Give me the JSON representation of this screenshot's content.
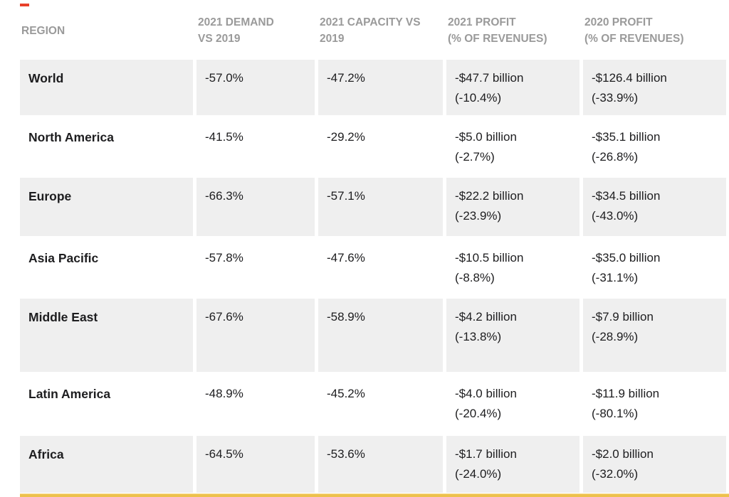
{
  "table": {
    "columns": [
      {
        "label": "REGION",
        "lines": [
          "REGION"
        ]
      },
      {
        "label": "2021 DEMAND VS 2019",
        "lines": [
          "2021 DEMAND",
          "VS 2019"
        ]
      },
      {
        "label": "2021 CAPACITY VS 2019",
        "lines": [
          "2021 CAPACITY VS",
          "2019"
        ]
      },
      {
        "label": "2021 PROFIT (% OF REVENUES)",
        "lines": [
          "2021 PROFIT",
          "(% OF REVENUES)"
        ]
      },
      {
        "label": "2020 PROFIT (% OF REVENUES)",
        "lines": [
          "2020 PROFIT",
          "(% OF REVENUES)"
        ]
      }
    ],
    "rows": [
      {
        "region": "World",
        "demand": "-57.0%",
        "capacity": "-47.2%",
        "profit_2021": [
          "-$47.7 billion",
          "(-10.4%)"
        ],
        "profit_2020": [
          "-$126.4 billion",
          "(-33.9%)"
        ]
      },
      {
        "region": "North America",
        "demand": "-41.5%",
        "capacity": "-29.2%",
        "profit_2021": [
          "-$5.0 billion",
          "(-2.7%)"
        ],
        "profit_2020": [
          "-$35.1 billion",
          "(-26.8%)"
        ]
      },
      {
        "region": "Europe",
        "demand": "-66.3%",
        "capacity": "-57.1%",
        "profit_2021": [
          "-$22.2 billion",
          "(-23.9%)"
        ],
        "profit_2020": [
          "-$34.5 billion",
          "(-43.0%)"
        ]
      },
      {
        "region": "Asia Pacific",
        "demand": "-57.8%",
        "capacity": "-47.6%",
        "profit_2021": [
          "-$10.5 billion",
          "(-8.8%)"
        ],
        "profit_2020": [
          "-$35.0 billion",
          "(-31.1%)"
        ]
      },
      {
        "region": "Middle East",
        "demand": "-67.6%",
        "capacity": "-58.9%",
        "profit_2021": [
          "-$4.2 billion",
          "(-13.8%)"
        ],
        "profit_2020": [
          "-$7.9 billion",
          "(-28.9%)"
        ]
      },
      {
        "region": "Latin America",
        "demand": "-48.9%",
        "capacity": "-45.2%",
        "profit_2021": [
          "-$4.0 billion",
          "(-20.4%)"
        ],
        "profit_2020": [
          "-$11.9 billion",
          "(-80.1%)"
        ]
      },
      {
        "region": "Africa",
        "demand": "-64.5%",
        "capacity": "-53.6%",
        "profit_2021": [
          "-$1.7 billion",
          "(-24.0%)"
        ],
        "profit_2020": [
          "-$2.0 billion",
          "(-32.0%)"
        ]
      }
    ]
  },
  "chart_data": {
    "type": "table",
    "columns": [
      "REGION",
      "2021 DEMAND VS 2019",
      "2021 CAPACITY VS 2019",
      "2021 PROFIT (% OF REVENUES)",
      "2020 PROFIT (% OF REVENUES)"
    ],
    "rows": [
      [
        "World",
        "-57.0%",
        "-47.2%",
        "-$47.7 billion (-10.4%)",
        "-$126.4 billion (-33.9%)"
      ],
      [
        "North America",
        "-41.5%",
        "-29.2%",
        "-$5.0 billion (-2.7%)",
        "-$35.1 billion (-26.8%)"
      ],
      [
        "Europe",
        "-66.3%",
        "-57.1%",
        "-$22.2 billion (-23.9%)",
        "-$34.5 billion (-43.0%)"
      ],
      [
        "Asia Pacific",
        "-57.8%",
        "-47.6%",
        "-$10.5 billion (-8.8%)",
        "-$35.0 billion (-31.1%)"
      ],
      [
        "Middle East",
        "-67.6%",
        "-58.9%",
        "-$4.2 billion (-13.8%)",
        "-$7.9 billion (-28.9%)"
      ],
      [
        "Latin America",
        "-48.9%",
        "-45.2%",
        "-$4.0 billion (-20.4%)",
        "-$11.9 billion (-80.1%)"
      ],
      [
        "Africa",
        "-64.5%",
        "-53.6%",
        "-$1.7 billion (-24.0%)",
        "-$2.0 billion (-32.0%)"
      ]
    ]
  },
  "colors": {
    "row_shade": "#efefef",
    "header_text": "#9a9a9a",
    "body_text": "#1d1d1f",
    "accent_bar": "#edc14d",
    "top_marker": "#e8402a",
    "background": "#ffffff"
  }
}
